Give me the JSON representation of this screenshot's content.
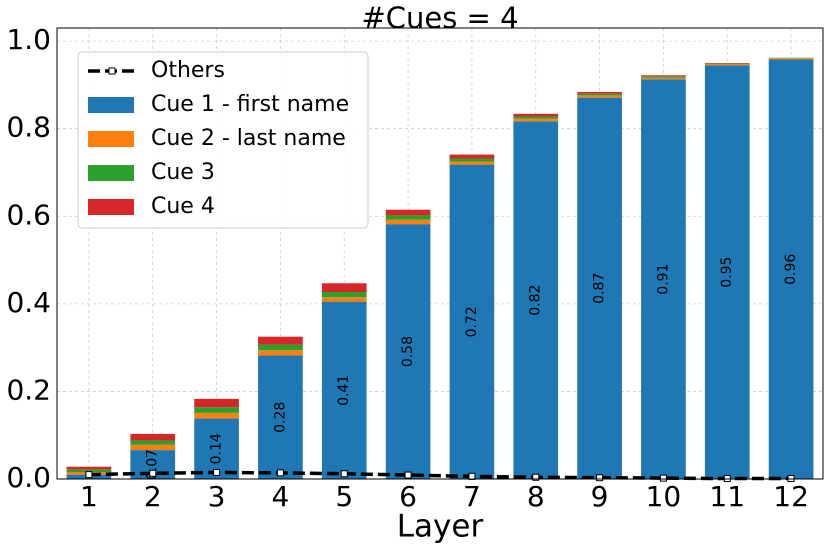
{
  "chart_data": {
    "type": "bar",
    "title": "#Cues = 4",
    "xlabel": "Layer",
    "categories": [
      "1",
      "2",
      "3",
      "4",
      "5",
      "6",
      "7",
      "8",
      "9",
      "10",
      "11",
      "12"
    ],
    "series": [
      {
        "name": "Others",
        "type": "line",
        "color": "#000000",
        "values": [
          0.01,
          0.013,
          0.015,
          0.014,
          0.012,
          0.009,
          0.006,
          0.004,
          0.003,
          0.002,
          0.001,
          0.001
        ]
      },
      {
        "name": "Cue 1 - first name",
        "type": "bar",
        "color": "#1f77b4",
        "values": [
          0.01,
          0.066,
          0.138,
          0.282,
          0.405,
          0.582,
          0.718,
          0.817,
          0.871,
          0.913,
          0.945,
          0.958
        ],
        "value_labels": [
          null,
          "0.07",
          "0.14",
          "0.28",
          "0.41",
          "0.58",
          "0.72",
          "0.82",
          "0.87",
          "0.91",
          "0.95",
          "0.96"
        ]
      },
      {
        "name": "Cue 2 - last name",
        "type": "bar",
        "color": "#ff7f0e",
        "values": [
          0.006,
          0.012,
          0.013,
          0.012,
          0.01,
          0.01,
          0.007,
          0.006,
          0.005,
          0.004,
          0.003,
          0.003
        ]
      },
      {
        "name": "Cue 3",
        "type": "bar",
        "color": "#2ca02c",
        "values": [
          0.006,
          0.01,
          0.013,
          0.013,
          0.012,
          0.01,
          0.007,
          0.005,
          0.004,
          0.003,
          0.001,
          0.001
        ]
      },
      {
        "name": "Cue 4",
        "type": "bar",
        "color": "#d62728",
        "values": [
          0.006,
          0.015,
          0.019,
          0.018,
          0.02,
          0.013,
          0.009,
          0.006,
          0.004,
          0.002,
          0.001,
          0
        ]
      }
    ],
    "ylim": [
      0,
      1.03
    ],
    "yticks": [
      {
        "value": 0,
        "label": "0.0"
      },
      0.2,
      0.4,
      0.6,
      0.8,
      {
        "value": 1,
        "label": "1.0"
      }
    ],
    "grid": true,
    "legend": "upper left"
  }
}
